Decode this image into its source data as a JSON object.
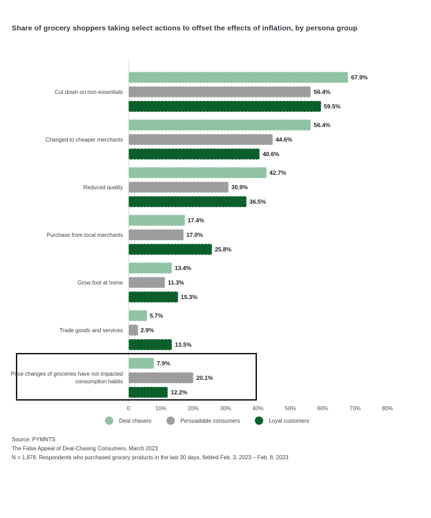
{
  "title": "Share of grocery shoppers taking select actions to offset the effects of inflation, by persona group",
  "chart_data": {
    "type": "bar",
    "orientation": "horizontal",
    "title": "Share of grocery shoppers taking select actions to offset the effects of inflation, by persona group",
    "categories": [
      "Cut down on non-essentials",
      "Changed to cheaper merchants",
      "Reduced quality",
      "Purchase from local merchants",
      "Grow foot at home",
      "Trade goods and services",
      "Price changes of groceries have not impacted consumption habits"
    ],
    "series": [
      {
        "name": "Deal chasers",
        "color": "#8fc3a4",
        "values": [
          67.9,
          56.4,
          42.7,
          17.4,
          13.4,
          5.7,
          7.9
        ]
      },
      {
        "name": "Persuadable consumers",
        "color": "#9d9d9d",
        "values": [
          56.4,
          44.6,
          30.9,
          17.0,
          11.3,
          2.9,
          20.1
        ]
      },
      {
        "name": "Loyal customers",
        "color": "#0a5f2b",
        "values": [
          59.5,
          40.6,
          36.5,
          25.8,
          15.3,
          13.5,
          12.2
        ]
      }
    ],
    "value_suffix": "%",
    "xlim": [
      0,
      80
    ],
    "x_tick_values": [
      0,
      10,
      20,
      30,
      40,
      50,
      60,
      70,
      80
    ],
    "x_tick_labels": [
      "0",
      "10%",
      "20%",
      "30%",
      "40%",
      "50%",
      "60%",
      "70%",
      "80%"
    ],
    "grid": false,
    "legend_position": "bottom",
    "highlighted_category_index": 6
  },
  "footer": {
    "source": "Source: PYMNTS",
    "publication": "The False Appeal of Deal-Chasing Consumers, March 2023",
    "sample": "N = 1,876: Respondents who purchased grocery products in the last 30 days, fielded Feb. 3, 2023 – Feb. 8, 2023"
  }
}
